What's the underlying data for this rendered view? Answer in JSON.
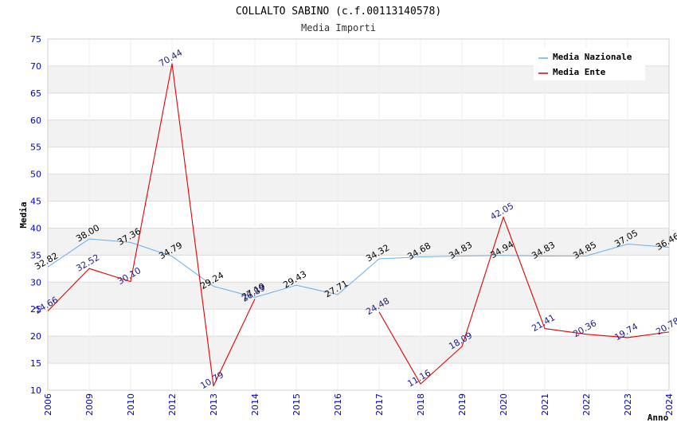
{
  "chart_data": {
    "type": "line",
    "title": "COLLALTO SABINO (c.f.00113140578)",
    "subtitle": "Media Importi",
    "xlabel": "Anno",
    "ylabel": "Media",
    "ylim": [
      10,
      75
    ],
    "yticks": [
      10,
      15,
      20,
      25,
      30,
      35,
      40,
      45,
      50,
      55,
      60,
      65,
      70,
      75
    ],
    "categories": [
      "2006",
      "2009",
      "2010",
      "2012",
      "2013",
      "2014",
      "2015",
      "2016",
      "2017",
      "2018",
      "2019",
      "2020",
      "2021",
      "2022",
      "2023",
      "2024"
    ],
    "legend_position": "top-right",
    "series": [
      {
        "name": "Media Nazionale",
        "color": "#6aaee8",
        "label_color": "#000000",
        "values": [
          32.82,
          38.0,
          37.36,
          34.79,
          29.24,
          27.19,
          29.43,
          27.71,
          34.32,
          34.68,
          34.83,
          34.94,
          34.83,
          34.85,
          37.05,
          36.46
        ],
        "labels": [
          "32.82",
          "38.00",
          "37.36",
          "34.79",
          "29.24",
          "27.19",
          "29.43",
          "27.71",
          "34.32",
          "34.68",
          "34.83",
          "34.94",
          "34.83",
          "34.85",
          "37.05",
          "36.46"
        ]
      },
      {
        "name": "Media Ente",
        "color": "#e00000",
        "label_color": "#1a1a8c",
        "values": [
          24.66,
          32.52,
          30.1,
          70.44,
          10.79,
          26.89,
          null,
          null,
          24.48,
          11.16,
          18.09,
          42.05,
          21.41,
          20.36,
          19.74,
          20.78
        ],
        "labels": [
          "24.66",
          "32.52",
          "30.10",
          "70.44",
          "10.79",
          "26.89",
          null,
          null,
          "24.48",
          "11.16",
          "18.09",
          "42.05",
          "21.41",
          "20.36",
          "19.74",
          "20.78"
        ]
      }
    ],
    "colors": {
      "band": "#f2f2f2",
      "grid": "#dcdcdc",
      "tick_text": "#0000cc"
    }
  }
}
